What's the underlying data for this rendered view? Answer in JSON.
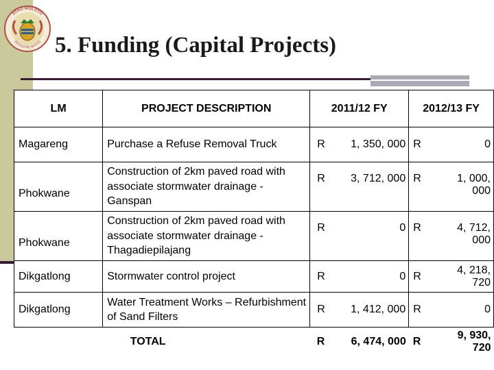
{
  "header": {
    "title": "5. Funding  (Capital Projects)"
  },
  "logo": {
    "banner_text": "ATHO MOLOTO",
    "motto": "ROTHO RE BATHO"
  },
  "table": {
    "columns": [
      "LM",
      "PROJECT DESCRIPTION",
      "2011/12 FY",
      "2012/13 FY"
    ],
    "rows": [
      {
        "lm": "Magareng",
        "description": "Purchase a Refuse Removal Truck",
        "cur1": "R",
        "fy2011": "1, 350, 000",
        "cur2": "R",
        "fy2012": "0"
      },
      {
        "lm": "Phokwane",
        "description": "Construction of 2km paved road with associate stormwater drainage - Ganspan",
        "cur1": "R",
        "fy2011": "3, 712, 000",
        "cur2": "R",
        "fy2012": "1, 000, 000"
      },
      {
        "lm": "Phokwane",
        "description": "Construction of 2km paved road with associate stormwater drainage - Thagadiepilajang",
        "cur1": "R",
        "fy2011": "0",
        "cur2": "R",
        "fy2012": "4, 712, 000"
      },
      {
        "lm": "Dikgatlong",
        "description": "Stormwater control project",
        "cur1": "R",
        "fy2011": "0",
        "cur2": "R",
        "fy2012": "4, 218, 720"
      },
      {
        "lm": "Dikgatlong",
        "description": "Water Treatment Works – Refurbishment of Sand Filters",
        "cur1": "R",
        "fy2011": "1, 412, 000",
        "cur2": "R",
        "fy2012": "0"
      }
    ],
    "total": {
      "label": "TOTAL",
      "cur1": "R",
      "fy2011": "6, 474, 000",
      "cur2": "R",
      "fy2012": "9, 930, 720"
    }
  }
}
